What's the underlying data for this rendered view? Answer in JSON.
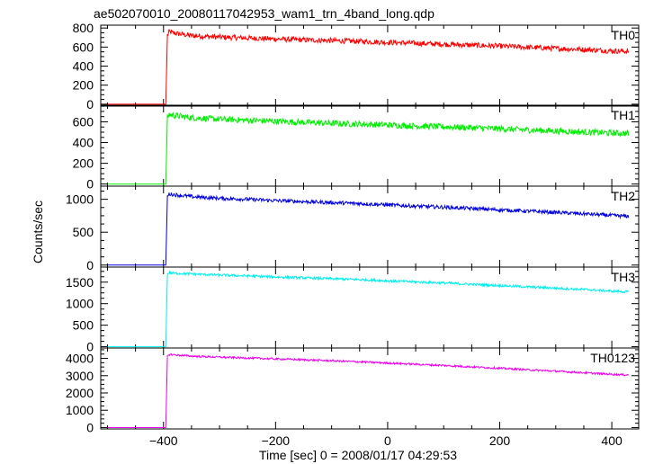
{
  "chart_data": {
    "type": "line",
    "title": "ae502070010_20080117042953_wam1_trn_4band_long.qdp",
    "xlabel": "Time [sec] 0 = 2008/01/17 04:29:53",
    "ylabel": "Counts/sec",
    "xlim": [
      -512,
      448
    ],
    "x_ticks": [
      -400,
      -200,
      0,
      200,
      400
    ],
    "x_tick_labels": [
      "−400",
      "−200",
      "0",
      "200",
      "400"
    ],
    "grid": false,
    "panels": [
      {
        "name": "TH0",
        "color": "#ff0000",
        "ylim": [
          -20,
          830
        ],
        "y_ticks": [
          0,
          200,
          400,
          600,
          800
        ],
        "y_tick_labels": [
          "0",
          "200",
          "400",
          "600",
          "800"
        ],
        "x": [
          -500,
          -396,
          -393,
          -390,
          -380,
          -350,
          -300,
          -250,
          -200,
          -150,
          -100,
          -50,
          0,
          50,
          100,
          150,
          200,
          250,
          300,
          350,
          400,
          430
        ],
        "y": [
          0,
          0,
          720,
          760,
          745,
          720,
          705,
          695,
          685,
          675,
          668,
          660,
          650,
          640,
          630,
          620,
          610,
          598,
          585,
          575,
          560,
          555
        ],
        "noise": 28
      },
      {
        "name": "TH1",
        "color": "#00ee00",
        "ylim": [
          -20,
          760
        ],
        "y_ticks": [
          0,
          200,
          400,
          600
        ],
        "y_tick_labels": [
          "0",
          "200",
          "400",
          "600"
        ],
        "x": [
          -500,
          -396,
          -393,
          -390,
          -380,
          -350,
          -300,
          -250,
          -200,
          -150,
          -100,
          -50,
          0,
          50,
          100,
          150,
          200,
          250,
          300,
          350,
          400,
          430
        ],
        "y": [
          0,
          0,
          640,
          670,
          660,
          640,
          625,
          615,
          605,
          595,
          585,
          578,
          570,
          560,
          552,
          543,
          533,
          522,
          512,
          502,
          492,
          488
        ],
        "noise": 30
      },
      {
        "name": "TH2",
        "color": "#0000dd",
        "ylim": [
          -30,
          1200
        ],
        "y_ticks": [
          0,
          500,
          1000
        ],
        "y_tick_labels": [
          "0",
          "500",
          "1000"
        ],
        "x": [
          -500,
          -396,
          -393,
          -390,
          -380,
          -350,
          -300,
          -250,
          -200,
          -150,
          -100,
          -50,
          0,
          50,
          100,
          150,
          200,
          250,
          300,
          350,
          400,
          430
        ],
        "y": [
          0,
          0,
          1040,
          1080,
          1070,
          1040,
          1015,
          1000,
          980,
          965,
          950,
          935,
          915,
          895,
          880,
          860,
          840,
          820,
          800,
          780,
          755,
          740
        ],
        "noise": 28
      },
      {
        "name": "TH3",
        "color": "#00eeee",
        "ylim": [
          -30,
          1850
        ],
        "y_ticks": [
          0,
          500,
          1000,
          1500
        ],
        "y_tick_labels": [
          "0",
          "500",
          "1000",
          "1500"
        ],
        "x": [
          -500,
          -396,
          -393,
          -390,
          -380,
          -350,
          -300,
          -250,
          -200,
          -150,
          -100,
          -50,
          0,
          50,
          100,
          150,
          200,
          250,
          300,
          350,
          400,
          430
        ],
        "y": [
          0,
          0,
          1680,
          1720,
          1705,
          1690,
          1665,
          1645,
          1620,
          1600,
          1580,
          1560,
          1530,
          1505,
          1480,
          1450,
          1420,
          1390,
          1360,
          1330,
          1290,
          1275
        ],
        "noise": 28
      },
      {
        "name": "TH0123",
        "color": "#ee00ee",
        "ylim": [
          -80,
          4600
        ],
        "y_ticks": [
          0,
          1000,
          2000,
          3000,
          4000
        ],
        "y_tick_labels": [
          "0",
          "1000",
          "2000",
          "3000",
          "4000"
        ],
        "x": [
          -500,
          -396,
          -393,
          -390,
          -380,
          -350,
          -300,
          -250,
          -200,
          -150,
          -100,
          -50,
          0,
          50,
          100,
          150,
          200,
          250,
          300,
          350,
          400,
          430
        ],
        "y": [
          0,
          0,
          4100,
          4230,
          4200,
          4130,
          4070,
          4020,
          3970,
          3920,
          3860,
          3800,
          3730,
          3660,
          3590,
          3510,
          3430,
          3340,
          3260,
          3170,
          3080,
          3040
        ],
        "noise": 55
      }
    ]
  }
}
